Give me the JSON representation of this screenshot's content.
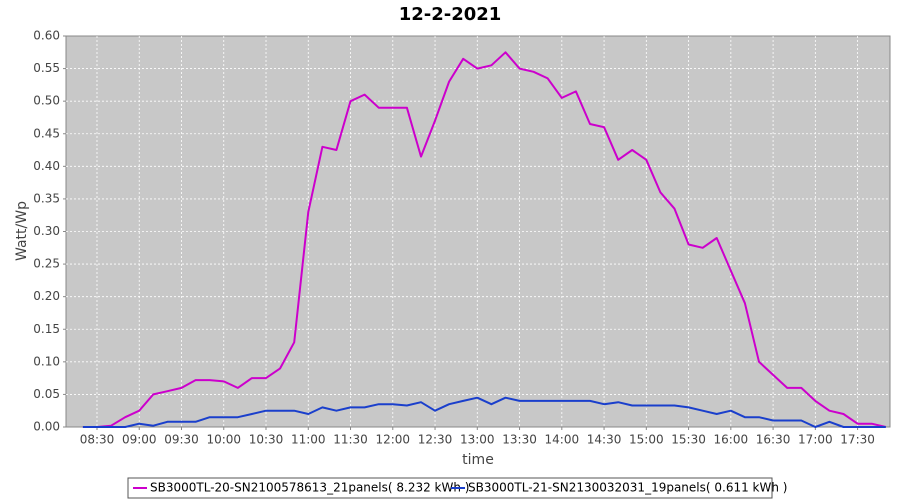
{
  "chart_data": {
    "type": "line",
    "title": "12-2-2021",
    "xlabel": "time",
    "ylabel": "Watt/Wp",
    "x": [
      "08:20",
      "08:30",
      "08:40",
      "08:50",
      "09:00",
      "09:10",
      "09:20",
      "09:30",
      "09:40",
      "09:50",
      "10:00",
      "10:10",
      "10:20",
      "10:30",
      "10:40",
      "10:50",
      "11:00",
      "11:10",
      "11:20",
      "11:30",
      "11:40",
      "11:50",
      "12:00",
      "12:10",
      "12:20",
      "12:30",
      "12:40",
      "12:50",
      "13:00",
      "13:10",
      "13:20",
      "13:30",
      "13:40",
      "13:50",
      "14:00",
      "14:10",
      "14:20",
      "14:30",
      "14:40",
      "14:50",
      "15:00",
      "15:10",
      "15:20",
      "15:30",
      "15:40",
      "15:50",
      "16:00",
      "16:10",
      "16:20",
      "16:30",
      "16:40",
      "16:50",
      "17:00",
      "17:10",
      "17:20",
      "17:30",
      "17:40",
      "17:50"
    ],
    "series": [
      {
        "name": "SB3000TL-20-SN2100578613_21panels( 8.232 kWh )",
        "color": "#cc00cc",
        "values": [
          0,
          0,
          0.002,
          0.015,
          0.025,
          0.05,
          0.055,
          0.06,
          0.072,
          0.072,
          0.07,
          0.06,
          0.075,
          0.075,
          0.09,
          0.13,
          0.33,
          0.43,
          0.425,
          0.5,
          0.51,
          0.49,
          0.49,
          0.49,
          0.415,
          0.47,
          0.53,
          0.565,
          0.55,
          0.555,
          0.575,
          0.55,
          0.545,
          0.535,
          0.505,
          0.515,
          0.465,
          0.46,
          0.41,
          0.425,
          0.41,
          0.36,
          0.335,
          0.28,
          0.275,
          0.29,
          0.24,
          0.19,
          0.1,
          0.08,
          0.06,
          0.06,
          0.04,
          0.025,
          0.02,
          0.005,
          0.005,
          0
        ]
      },
      {
        "name": "SB3000TL-21-SN2130032031_19panels( 0.611 kWh )",
        "color": "#1a3fcc",
        "values": [
          0,
          0,
          0,
          0,
          0.005,
          0.002,
          0.008,
          0.008,
          0.008,
          0.015,
          0.015,
          0.015,
          0.02,
          0.025,
          0.025,
          0.025,
          0.02,
          0.03,
          0.025,
          0.03,
          0.03,
          0.035,
          0.035,
          0.033,
          0.038,
          0.025,
          0.035,
          0.04,
          0.045,
          0.035,
          0.045,
          0.04,
          0.04,
          0.04,
          0.04,
          0.04,
          0.04,
          0.035,
          0.038,
          0.033,
          0.033,
          0.033,
          0.033,
          0.03,
          0.025,
          0.02,
          0.025,
          0.015,
          0.015,
          0.01,
          0.01,
          0.01,
          0,
          0.008,
          0,
          0,
          0,
          0
        ]
      }
    ],
    "xlim": [
      "08:08",
      "17:53"
    ],
    "xticks": [
      "08:30",
      "09:00",
      "09:30",
      "10:00",
      "10:30",
      "11:00",
      "11:30",
      "12:00",
      "12:30",
      "13:00",
      "13:30",
      "14:00",
      "14:30",
      "15:00",
      "15:30",
      "16:00",
      "16:30",
      "17:00",
      "17:30"
    ],
    "ylim": [
      0,
      0.6
    ],
    "yticks": [
      {
        "value": 0,
        "label": "0.00"
      },
      0.05,
      {
        "value": 0.1,
        "label": "0.10"
      },
      0.15,
      {
        "value": 0.2,
        "label": "0.20"
      },
      0.25,
      {
        "value": 0.3,
        "label": "0.30"
      },
      0.35,
      {
        "value": 0.4,
        "label": "0.40"
      },
      0.45,
      {
        "value": 0.5,
        "label": "0.50"
      },
      0.55,
      {
        "value": 0.6,
        "label": "0.60"
      }
    ],
    "grid": true,
    "legend": "bottom"
  }
}
